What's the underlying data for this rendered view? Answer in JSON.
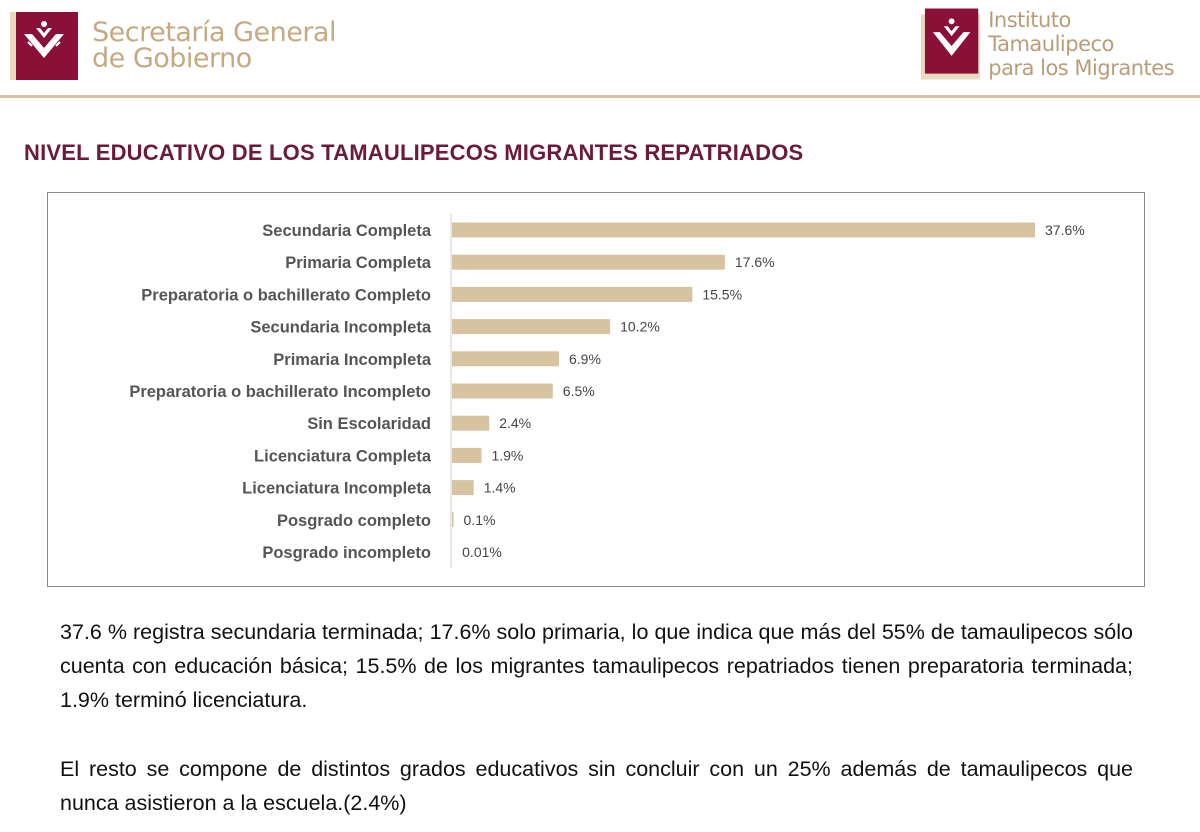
{
  "header": {
    "left_logo": {
      "line1": "Secretaría General",
      "line2": "de Gobierno"
    },
    "right_logo": {
      "line1": "Instituto Tamaulipeco",
      "line2": "para los Migrantes"
    },
    "colors": {
      "brand": "#8b1038",
      "gold": "#c5a983"
    }
  },
  "page_title": "NIVEL EDUCATIVO DE LOS  TAMAULIPECOS MIGRANTES REPATRIADOS",
  "chart_data": {
    "type": "bar",
    "orientation": "horizontal",
    "title": "",
    "xlabel": "",
    "ylabel": "",
    "bar_color": "#d8c3a0",
    "categories": [
      "Secundaria Completa",
      "Primaria Completa",
      "Preparatoria o bachillerato Completo",
      "Secundaria Incompleta",
      "Primaria Incompleta",
      "Preparatoria o bachillerato Incompleto",
      "Sin Escolaridad",
      "Licenciatura Completa",
      "Licenciatura Incompleta",
      "Posgrado completo",
      "Posgrado incompleto"
    ],
    "values": [
      37.6,
      17.6,
      15.5,
      10.2,
      6.9,
      6.5,
      2.4,
      1.9,
      1.4,
      0.1,
      0.01
    ],
    "value_labels": [
      "37.6%",
      "17.6%",
      "15.5%",
      "10.2%",
      "6.9%",
      "6.5%",
      "2.4%",
      "1.9%",
      "1.4%",
      "0.1%",
      "0.01%"
    ],
    "xlim": [
      0,
      37.6
    ],
    "grid": false
  },
  "paragraphs": [
    "37.6 % registra secundaria terminada; 17.6% solo primaria,  lo que indica que más del 55% de tamaulipecos sólo cuenta con educación  básica; 15.5% de los migrantes tamaulipecos repatriados tienen preparatoria terminada; 1.9% terminó licenciatura.",
    "El resto se compone de distintos grados educativos sin concluir con un 25% además de tamaulipecos que nunca asistieron a la escuela.(2.4%)"
  ]
}
